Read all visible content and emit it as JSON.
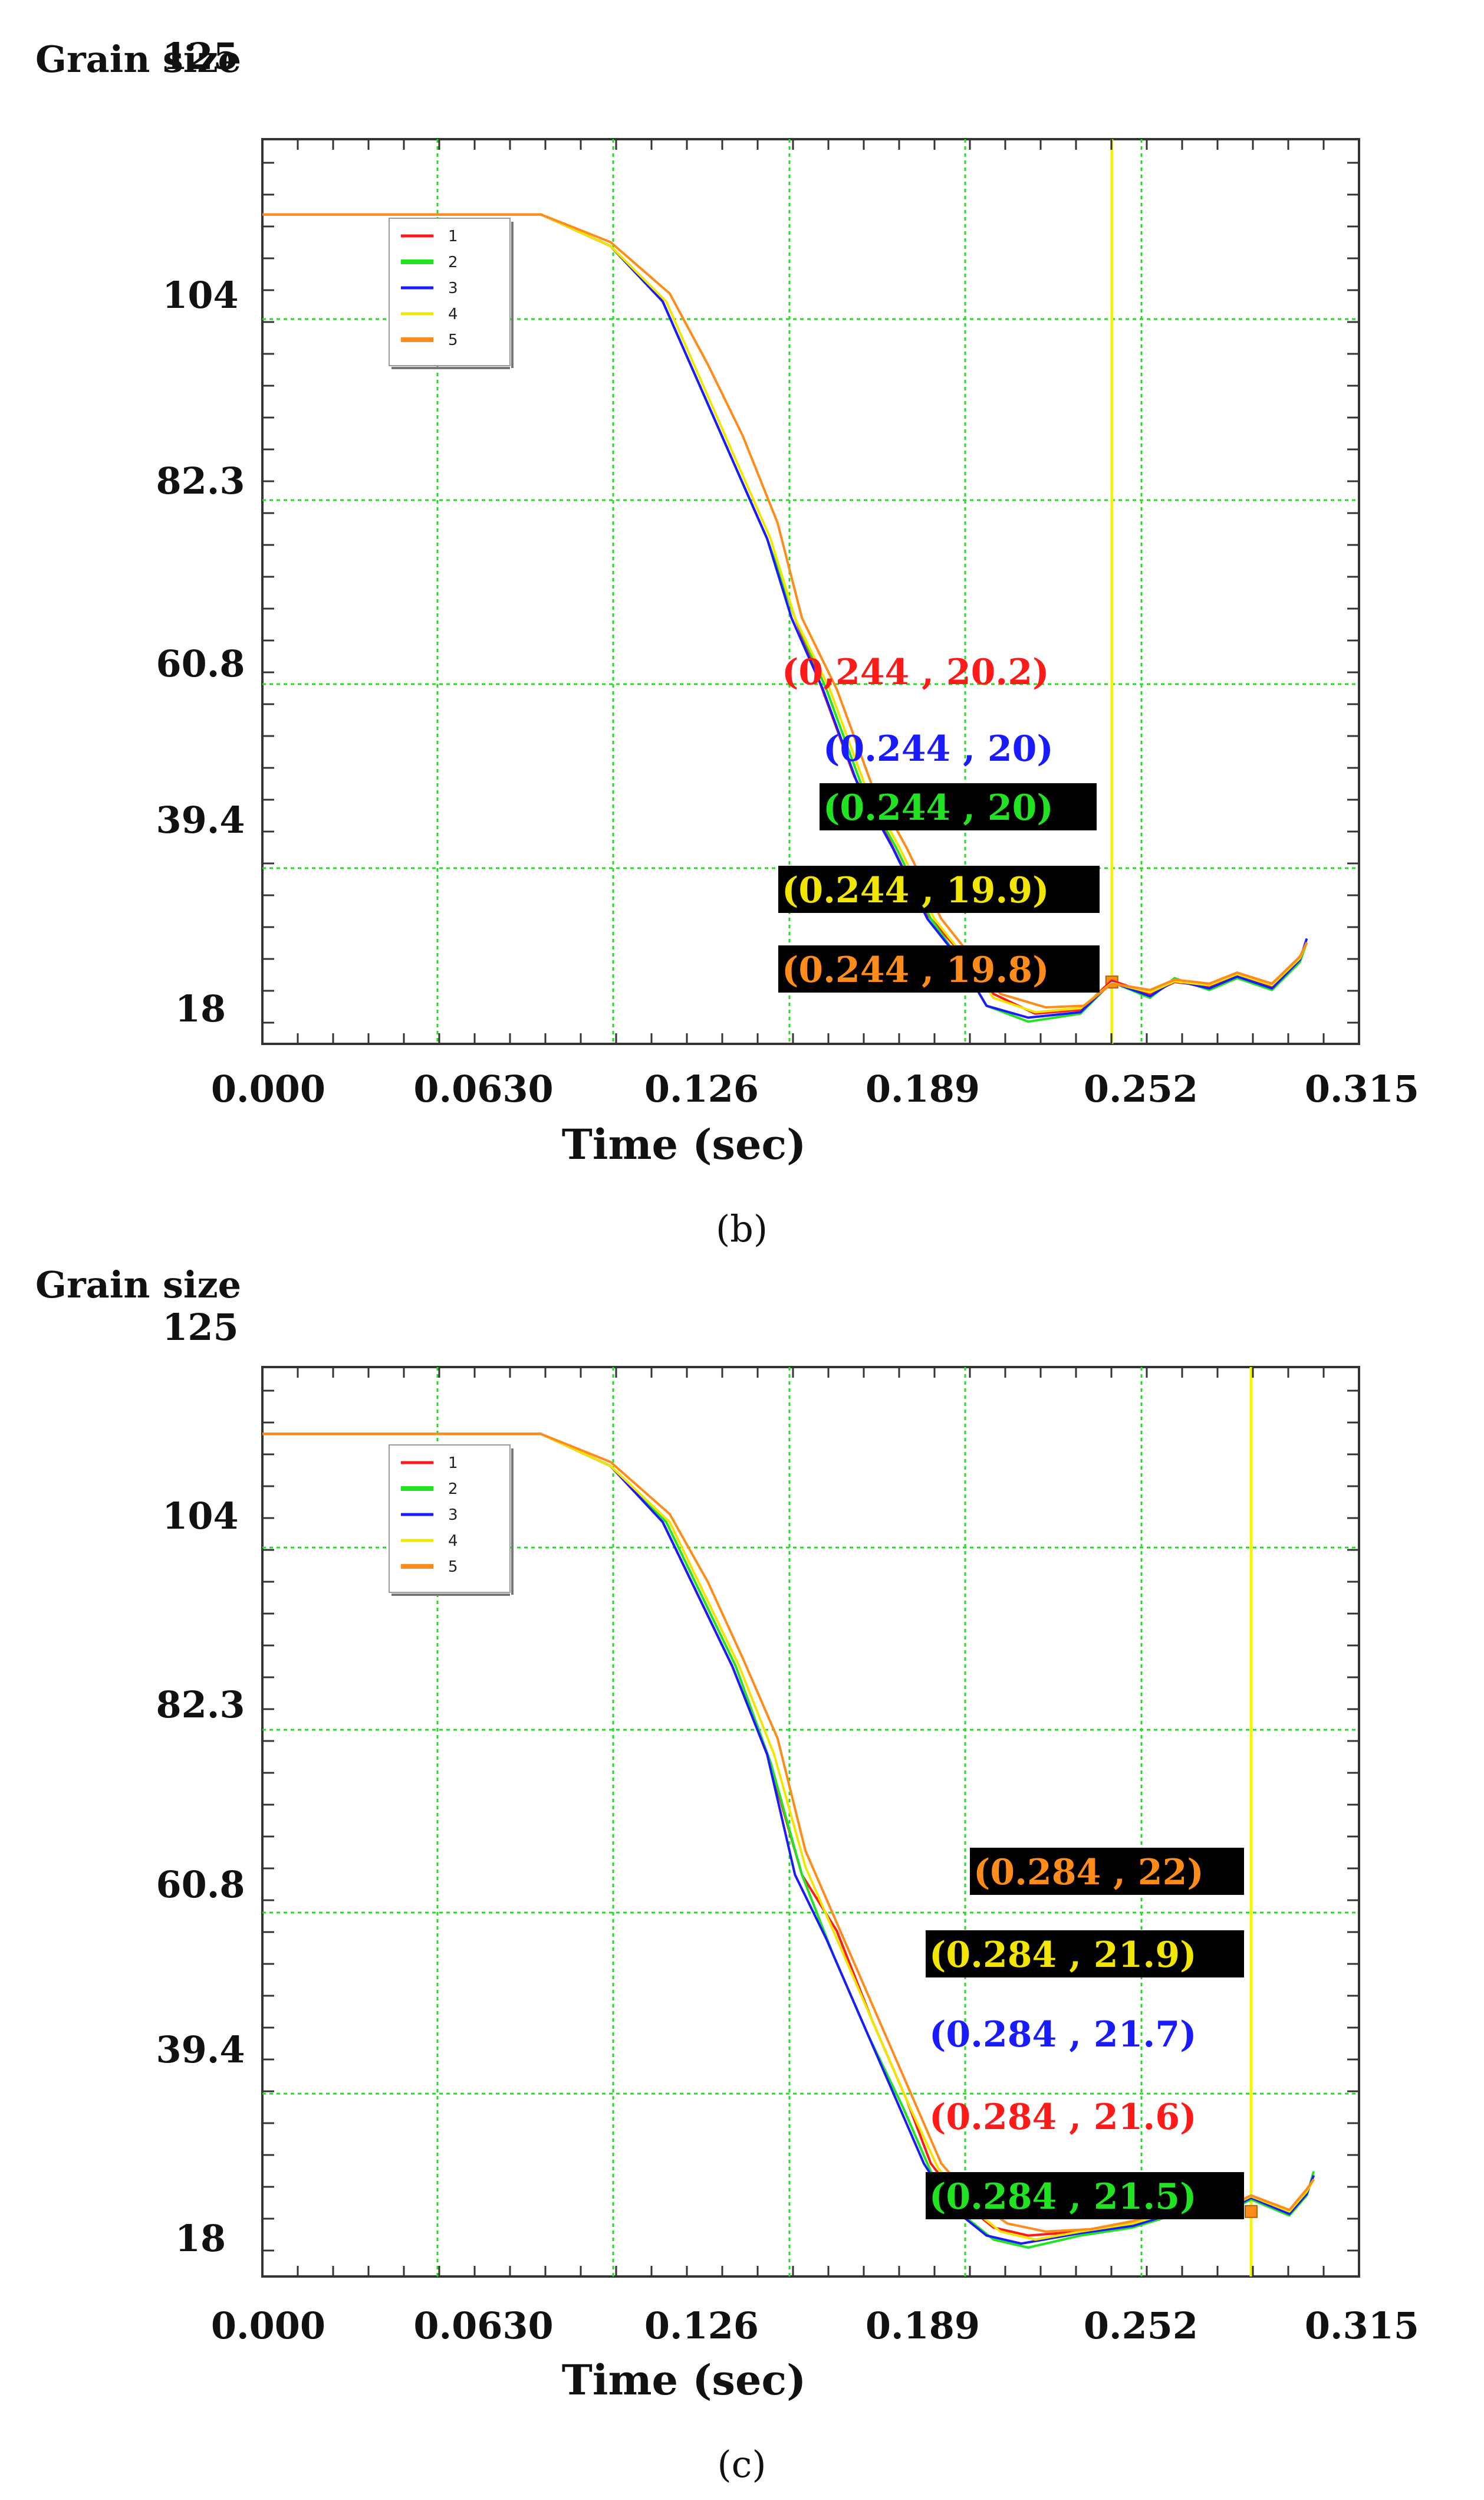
{
  "colors": {
    "s1": "#ff1a1a",
    "s2": "#22e322",
    "s3": "#1a1aff",
    "s4": "#f2e600",
    "s5": "#ff8c1a",
    "grid": "#22dd22",
    "cursor": "#f5f500"
  },
  "chart_data": [
    {
      "type": "line",
      "panel_label": "(b)",
      "title": "Grain size",
      "xlabel": "Time (sec)",
      "ylabel": "Grain size",
      "xlim": [
        0,
        0.315
      ],
      "ylim": [
        14,
        125
      ],
      "x_ticks": [
        "0.000",
        "0.0630",
        "0.126",
        "0.189",
        "0.252",
        "0.315"
      ],
      "y_ticks": [
        "125",
        "104",
        "82.3",
        "60.8",
        "39.4",
        "18"
      ],
      "cursor_x": 0.244,
      "legend": [
        "1",
        "2",
        "3",
        "4",
        "5"
      ],
      "series": [
        {
          "name": "1",
          "color": "#ff1a1a",
          "points": [
            [
              0,
              117
            ],
            [
              0.08,
              117
            ],
            [
              0.1,
              113
            ],
            [
              0.115,
              106
            ],
            [
              0.125,
              96
            ],
            [
              0.135,
              86
            ],
            [
              0.145,
              76
            ],
            [
              0.153,
              66
            ],
            [
              0.16,
              58
            ],
            [
              0.17,
              46
            ],
            [
              0.18,
              38
            ],
            [
              0.19,
              29
            ],
            [
              0.2,
              24
            ],
            [
              0.21,
              18.5
            ],
            [
              0.222,
              16
            ],
            [
              0.235,
              16.5
            ],
            [
              0.244,
              20.2
            ],
            [
              0.255,
              18.5
            ],
            [
              0.262,
              20
            ],
            [
              0.272,
              19.5
            ],
            [
              0.28,
              21
            ],
            [
              0.29,
              19.5
            ],
            [
              0.298,
              23
            ],
            [
              0.3,
              25
            ]
          ]
        },
        {
          "name": "2",
          "color": "#22e322",
          "points": [
            [
              0,
              117
            ],
            [
              0.08,
              117
            ],
            [
              0.1,
              113
            ],
            [
              0.115,
              106
            ],
            [
              0.125,
              96
            ],
            [
              0.135,
              86
            ],
            [
              0.145,
              76
            ],
            [
              0.153,
              66
            ],
            [
              0.162,
              57
            ],
            [
              0.172,
              45
            ],
            [
              0.182,
              37
            ],
            [
              0.192,
              28
            ],
            [
              0.2,
              23
            ],
            [
              0.208,
              17
            ],
            [
              0.22,
              15
            ],
            [
              0.235,
              16
            ],
            [
              0.244,
              20
            ],
            [
              0.255,
              18
            ],
            [
              0.262,
              20.5
            ],
            [
              0.272,
              19
            ],
            [
              0.28,
              20.5
            ],
            [
              0.29,
              19
            ],
            [
              0.298,
              22.5
            ],
            [
              0.3,
              25
            ]
          ]
        },
        {
          "name": "3",
          "color": "#1a1aff",
          "points": [
            [
              0,
              117
            ],
            [
              0.08,
              117
            ],
            [
              0.1,
              113
            ],
            [
              0.115,
              106
            ],
            [
              0.125,
              96
            ],
            [
              0.135,
              86
            ],
            [
              0.145,
              76
            ],
            [
              0.152,
              66
            ],
            [
              0.161,
              57
            ],
            [
              0.171,
              45
            ],
            [
              0.181,
              37
            ],
            [
              0.191,
              28
            ],
            [
              0.2,
              23
            ],
            [
              0.208,
              17
            ],
            [
              0.22,
              15.5
            ],
            [
              0.235,
              16.2
            ],
            [
              0.244,
              20
            ],
            [
              0.255,
              18.2
            ],
            [
              0.262,
              20.2
            ],
            [
              0.272,
              19.2
            ],
            [
              0.28,
              20.7
            ],
            [
              0.29,
              19.2
            ],
            [
              0.298,
              22.8
            ],
            [
              0.3,
              25.5
            ]
          ]
        },
        {
          "name": "4",
          "color": "#f2e600",
          "points": [
            [
              0,
              117
            ],
            [
              0.08,
              117
            ],
            [
              0.1,
              113
            ],
            [
              0.116,
              106
            ],
            [
              0.126,
              96
            ],
            [
              0.136,
              86
            ],
            [
              0.146,
              76
            ],
            [
              0.153,
              66
            ],
            [
              0.163,
              57
            ],
            [
              0.173,
              45
            ],
            [
              0.183,
              37
            ],
            [
              0.193,
              28
            ],
            [
              0.202,
              23
            ],
            [
              0.21,
              18
            ],
            [
              0.222,
              16.2
            ],
            [
              0.235,
              16.7
            ],
            [
              0.244,
              19.9
            ],
            [
              0.255,
              18.7
            ],
            [
              0.262,
              20.1
            ],
            [
              0.272,
              19.6
            ],
            [
              0.28,
              21
            ],
            [
              0.29,
              19.6
            ],
            [
              0.298,
              23
            ],
            [
              0.3,
              25
            ]
          ]
        },
        {
          "name": "5",
          "color": "#ff8c1a",
          "points": [
            [
              0,
              117
            ],
            [
              0.08,
              117
            ],
            [
              0.1,
              113.5
            ],
            [
              0.117,
              107
            ],
            [
              0.128,
              98
            ],
            [
              0.138,
              89
            ],
            [
              0.148,
              78
            ],
            [
              0.155,
              66
            ],
            [
              0.165,
              57
            ],
            [
              0.175,
              45
            ],
            [
              0.185,
              37
            ],
            [
              0.195,
              28
            ],
            [
              0.204,
              23
            ],
            [
              0.212,
              18.5
            ],
            [
              0.225,
              16.8
            ],
            [
              0.236,
              17
            ],
            [
              0.244,
              19.8
            ],
            [
              0.255,
              19
            ],
            [
              0.262,
              20.3
            ],
            [
              0.272,
              19.8
            ],
            [
              0.28,
              21.2
            ],
            [
              0.29,
              19.8
            ],
            [
              0.298,
              23.2
            ],
            [
              0.3,
              25
            ]
          ]
        }
      ],
      "annotations": [
        {
          "text": "(0,244 , 20.2)",
          "color": "#ff1a1a",
          "highlight": false
        },
        {
          "text": "(0.244 , 20)",
          "color": "#1a1aff",
          "highlight": false
        },
        {
          "text": "(0.244 , 20)",
          "color": "#22e322",
          "highlight": true
        },
        {
          "text": "(0.244 , 19.9)",
          "color": "#f2e600",
          "highlight": true
        },
        {
          "text": "(0.244 , 19.8)",
          "color": "#ff8c1a",
          "highlight": true
        }
      ]
    },
    {
      "type": "line",
      "panel_label": "(c)",
      "title": "Grain size",
      "xlabel": "Time (sec)",
      "ylabel": "Grain size",
      "xlim": [
        0,
        0.315
      ],
      "ylim": [
        14,
        125
      ],
      "x_ticks": [
        "0.000",
        "0.0630",
        "0.126",
        "0.189",
        "0.252",
        "0.315"
      ],
      "y_ticks": [
        "125",
        "104",
        "82.3",
        "60.8",
        "39.4",
        "18"
      ],
      "cursor_x": 0.284,
      "legend": [
        "1",
        "2",
        "3",
        "4",
        "5"
      ],
      "series": [
        {
          "name": "1",
          "color": "#ff1a1a",
          "points": [
            [
              0,
              117
            ],
            [
              0.08,
              117
            ],
            [
              0.1,
              113
            ],
            [
              0.115,
              106
            ],
            [
              0.125,
              97
            ],
            [
              0.135,
              88
            ],
            [
              0.145,
              77
            ],
            [
              0.155,
              62
            ],
            [
              0.165,
              55
            ],
            [
              0.175,
              44
            ],
            [
              0.185,
              34
            ],
            [
              0.192,
              26
            ],
            [
              0.2,
              21.5
            ],
            [
              0.21,
              18
            ],
            [
              0.22,
              17
            ],
            [
              0.235,
              17.5
            ],
            [
              0.25,
              18.5
            ],
            [
              0.265,
              20.5
            ],
            [
              0.275,
              20
            ],
            [
              0.284,
              21.6
            ],
            [
              0.295,
              20
            ],
            [
              0.3,
              22.5
            ],
            [
              0.302,
              24
            ]
          ]
        },
        {
          "name": "2",
          "color": "#22e322",
          "points": [
            [
              0,
              117
            ],
            [
              0.08,
              117
            ],
            [
              0.1,
              113
            ],
            [
              0.116,
              106
            ],
            [
              0.126,
              97
            ],
            [
              0.136,
              88
            ],
            [
              0.146,
              76
            ],
            [
              0.155,
              62
            ],
            [
              0.164,
              52
            ],
            [
              0.174,
              42
            ],
            [
              0.184,
              33
            ],
            [
              0.192,
              25
            ],
            [
              0.2,
              20
            ],
            [
              0.21,
              16.5
            ],
            [
              0.22,
              15.5
            ],
            [
              0.235,
              17
            ],
            [
              0.25,
              18
            ],
            [
              0.265,
              20
            ],
            [
              0.275,
              19.5
            ],
            [
              0.284,
              21.5
            ],
            [
              0.295,
              19.5
            ],
            [
              0.3,
              22
            ],
            [
              0.302,
              25
            ]
          ]
        },
        {
          "name": "3",
          "color": "#1a1aff",
          "points": [
            [
              0,
              117
            ],
            [
              0.08,
              117
            ],
            [
              0.1,
              113
            ],
            [
              0.115,
              106
            ],
            [
              0.125,
              97
            ],
            [
              0.135,
              88
            ],
            [
              0.145,
              77
            ],
            [
              0.153,
              62
            ],
            [
              0.162,
              54
            ],
            [
              0.172,
              44
            ],
            [
              0.182,
              34
            ],
            [
              0.19,
              26
            ],
            [
              0.198,
              20.5
            ],
            [
              0.208,
              17
            ],
            [
              0.218,
              16
            ],
            [
              0.235,
              17.3
            ],
            [
              0.25,
              18.2
            ],
            [
              0.265,
              20.2
            ],
            [
              0.275,
              19.7
            ],
            [
              0.284,
              21.7
            ],
            [
              0.295,
              19.7
            ],
            [
              0.3,
              22.2
            ],
            [
              0.302,
              24.5
            ]
          ]
        },
        {
          "name": "4",
          "color": "#f2e600",
          "points": [
            [
              0,
              117
            ],
            [
              0.08,
              117
            ],
            [
              0.1,
              113
            ],
            [
              0.117,
              106
            ],
            [
              0.127,
              97
            ],
            [
              0.137,
              88
            ],
            [
              0.147,
              77
            ],
            [
              0.156,
              63
            ],
            [
              0.166,
              53
            ],
            [
              0.176,
              43
            ],
            [
              0.186,
              33
            ],
            [
              0.194,
              25.5
            ],
            [
              0.202,
              21
            ],
            [
              0.212,
              17.5
            ],
            [
              0.222,
              16.5
            ],
            [
              0.235,
              17.5
            ],
            [
              0.25,
              18.5
            ],
            [
              0.265,
              20.4
            ],
            [
              0.275,
              20
            ],
            [
              0.284,
              21.9
            ],
            [
              0.295,
              20
            ],
            [
              0.3,
              22.5
            ],
            [
              0.302,
              24
            ]
          ]
        },
        {
          "name": "5",
          "color": "#ff8c1a",
          "points": [
            [
              0,
              117
            ],
            [
              0.08,
              117
            ],
            [
              0.1,
              113.5
            ],
            [
              0.117,
              107
            ],
            [
              0.128,
              98.5
            ],
            [
              0.138,
              89
            ],
            [
              0.148,
              79
            ],
            [
              0.156,
              65
            ],
            [
              0.166,
              55
            ],
            [
              0.177,
              44
            ],
            [
              0.187,
              34
            ],
            [
              0.195,
              26
            ],
            [
              0.204,
              21.5
            ],
            [
              0.214,
              18.5
            ],
            [
              0.225,
              17.5
            ],
            [
              0.238,
              17.8
            ],
            [
              0.25,
              18.8
            ],
            [
              0.265,
              20.6
            ],
            [
              0.275,
              20.2
            ],
            [
              0.284,
              22
            ],
            [
              0.295,
              20.2
            ],
            [
              0.3,
              22.8
            ],
            [
              0.302,
              24
            ]
          ]
        }
      ],
      "annotations": [
        {
          "text": "(0.284 , 22)",
          "color": "#ff8c1a",
          "highlight": true
        },
        {
          "text": "(0.284 , 21.9)",
          "color": "#f2e600",
          "highlight": true
        },
        {
          "text": "(0.284 , 21.7)",
          "color": "#1a1aff",
          "highlight": false
        },
        {
          "text": "(0.284 , 21.6)",
          "color": "#ff1a1a",
          "highlight": false
        },
        {
          "text": "(0.284 , 21.5)",
          "color": "#22e322",
          "highlight": true
        }
      ]
    }
  ]
}
